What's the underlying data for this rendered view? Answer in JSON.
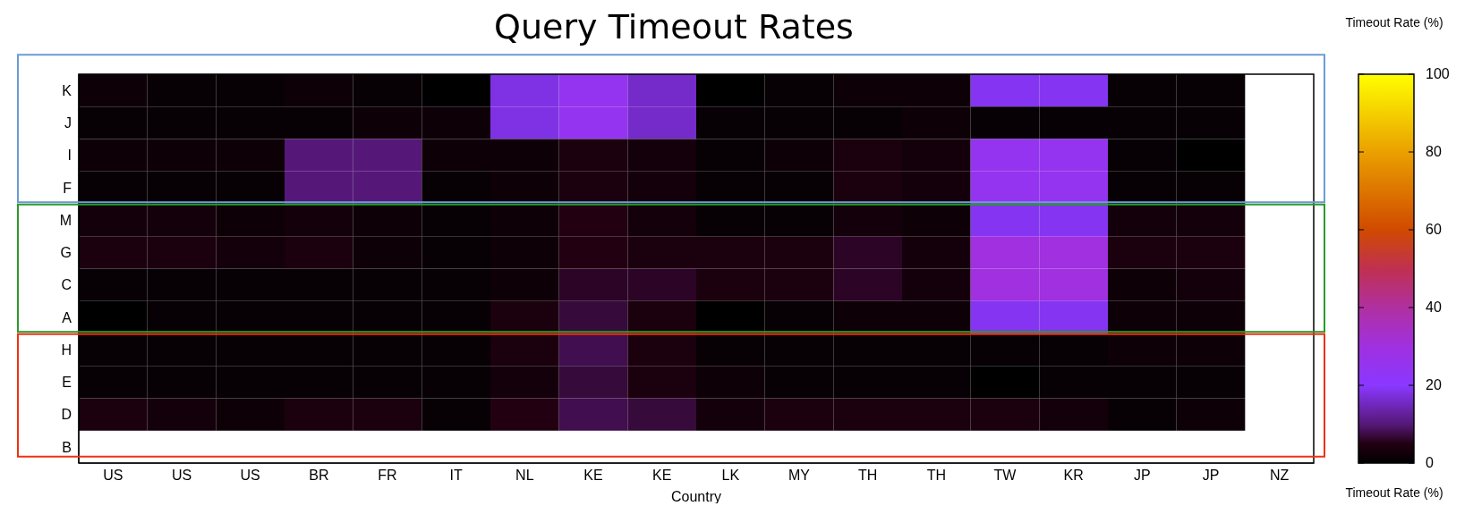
{
  "chart_data": {
    "type": "heatmap",
    "title": "Query Timeout Rates",
    "xlabel": "Country",
    "clabel": "Timeout Rate (%)",
    "categories": [
      "US",
      "US",
      "US",
      "BR",
      "FR",
      "IT",
      "NL",
      "KE",
      "KE",
      "LK",
      "MY",
      "TH",
      "TH",
      "TW",
      "KR",
      "JP",
      "JP",
      "NZ"
    ],
    "y_categories": [
      "K",
      "J",
      "I",
      "F",
      "M",
      "G",
      "C",
      "A",
      "H",
      "E",
      "D",
      "B"
    ],
    "cells": [
      [
        2,
        1,
        1,
        2,
        1,
        0,
        18,
        25,
        16,
        0,
        1,
        2,
        2,
        19,
        19,
        1,
        1,
        null
      ],
      [
        1,
        1,
        1,
        1,
        2,
        2,
        18,
        25,
        16,
        1,
        1,
        1,
        2,
        1,
        1,
        1,
        1,
        null
      ],
      [
        2,
        2,
        2,
        10,
        10,
        2,
        2,
        4,
        3,
        1,
        2,
        4,
        3,
        25,
        25,
        1,
        0,
        null
      ],
      [
        1,
        1,
        1,
        10,
        10,
        1,
        2,
        4,
        3,
        1,
        1,
        4,
        3,
        25,
        25,
        1,
        1,
        null
      ],
      [
        3,
        3,
        2,
        3,
        2,
        1,
        2,
        5,
        3,
        1,
        1,
        3,
        2,
        19,
        19,
        3,
        3,
        null
      ],
      [
        4,
        4,
        3,
        4,
        2,
        1,
        2,
        5,
        4,
        4,
        4,
        6,
        3,
        30,
        30,
        4,
        4,
        null
      ],
      [
        1,
        1,
        1,
        1,
        1,
        1,
        2,
        6,
        6,
        4,
        4,
        6,
        3,
        30,
        30,
        2,
        3,
        null
      ],
      [
        0,
        1,
        1,
        1,
        1,
        1,
        4,
        7,
        4,
        0,
        1,
        2,
        2,
        19,
        19,
        2,
        2,
        null
      ],
      [
        1,
        1,
        1,
        1,
        1,
        1,
        4,
        8,
        4,
        1,
        1,
        1,
        1,
        1,
        1,
        2,
        2,
        null
      ],
      [
        1,
        1,
        1,
        1,
        1,
        1,
        3,
        7,
        4,
        2,
        1,
        1,
        1,
        0,
        1,
        1,
        1,
        null
      ],
      [
        4,
        3,
        2,
        4,
        4,
        1,
        5,
        8,
        7,
        3,
        4,
        4,
        4,
        4,
        3,
        1,
        2,
        null
      ],
      [
        null,
        null,
        null,
        null,
        null,
        null,
        null,
        null,
        null,
        null,
        null,
        null,
        null,
        null,
        null,
        null,
        null,
        null
      ]
    ],
    "clim": [
      0,
      100
    ],
    "cticks": [
      0,
      20,
      40,
      60,
      80,
      100
    ],
    "annotations": [
      "Timeout Rate (%)"
    ]
  }
}
